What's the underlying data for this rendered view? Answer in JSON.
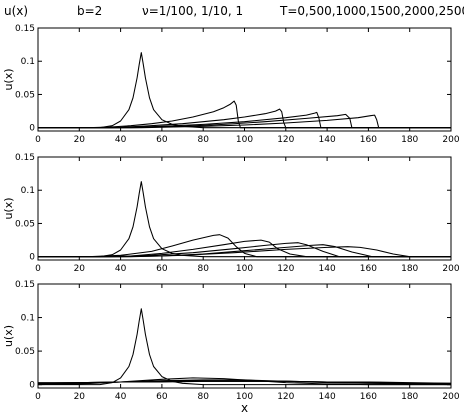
{
  "title": {
    "func": "u(x)",
    "b": "b=2",
    "nu": "ν=1/100, 1/10, 1",
    "times": "T=0,500,1000,1500,2000,2500"
  },
  "chart_data": [
    {
      "type": "line",
      "ylabel": "u(x)",
      "xlim": [
        0,
        200
      ],
      "ylim": [
        -0.005,
        0.15
      ],
      "xticks": [
        "0",
        "20",
        "40",
        "60",
        "80",
        "100",
        "120",
        "140",
        "160",
        "180",
        "200"
      ],
      "yticks": [
        "0",
        "0.05",
        "0.1",
        "0.15"
      ],
      "series": [
        {
          "x": [
            0,
            30,
            36,
            40,
            44,
            46,
            48,
            49,
            50,
            51,
            52,
            54,
            56,
            60,
            65,
            70,
            80,
            90,
            200
          ],
          "y": [
            0,
            0,
            0.003,
            0.01,
            0.027,
            0.045,
            0.075,
            0.095,
            0.113,
            0.095,
            0.075,
            0.045,
            0.027,
            0.012,
            0.005,
            0.002,
            0,
            0,
            0
          ]
        },
        {
          "x": [
            0,
            25,
            35,
            45,
            55,
            65,
            75,
            85,
            90,
            93,
            95,
            96,
            97,
            98,
            200
          ],
          "y": [
            0,
            0,
            0.001,
            0.003,
            0.006,
            0.01,
            0.016,
            0.024,
            0.03,
            0.035,
            0.04,
            0.034,
            0.01,
            0,
            0
          ]
        },
        {
          "x": [
            0,
            35,
            50,
            70,
            90,
            100,
            110,
            115,
            117,
            118,
            119,
            120,
            200
          ],
          "y": [
            0,
            0,
            0.002,
            0.006,
            0.012,
            0.016,
            0.021,
            0.025,
            0.028,
            0.024,
            0.008,
            0,
            0
          ]
        },
        {
          "x": [
            0,
            40,
            60,
            80,
            100,
            120,
            130,
            134,
            135,
            136,
            137,
            200
          ],
          "y": [
            0,
            0,
            0.002,
            0.005,
            0.009,
            0.015,
            0.019,
            0.022,
            0.023,
            0.015,
            0,
            0
          ]
        },
        {
          "x": [
            0,
            45,
            70,
            90,
            110,
            130,
            145,
            149,
            151,
            152,
            200
          ],
          "y": [
            0,
            0,
            0.002,
            0.005,
            0.009,
            0.014,
            0.018,
            0.02,
            0.014,
            0,
            0
          ]
        },
        {
          "x": [
            0,
            50,
            80,
            100,
            120,
            140,
            155,
            161,
            163,
            164,
            165,
            200
          ],
          "y": [
            0,
            0,
            0.002,
            0.004,
            0.007,
            0.011,
            0.015,
            0.018,
            0.019,
            0.012,
            0,
            0
          ]
        }
      ]
    },
    {
      "type": "line",
      "ylabel": "u(x)",
      "xlim": [
        0,
        200
      ],
      "ylim": [
        -0.005,
        0.15
      ],
      "xticks": [
        "0",
        "20",
        "40",
        "60",
        "80",
        "100",
        "120",
        "140",
        "160",
        "180",
        "200"
      ],
      "yticks": [
        "0",
        "0.05",
        "0.1",
        "0.15"
      ],
      "series": [
        {
          "x": [
            0,
            30,
            36,
            40,
            44,
            46,
            48,
            49,
            50,
            51,
            52,
            54,
            56,
            60,
            65,
            70,
            80,
            90,
            200
          ],
          "y": [
            0,
            0,
            0.003,
            0.01,
            0.027,
            0.045,
            0.075,
            0.095,
            0.113,
            0.095,
            0.075,
            0.045,
            0.027,
            0.012,
            0.005,
            0.002,
            0,
            0,
            0
          ]
        },
        {
          "x": [
            0,
            25,
            40,
            55,
            65,
            75,
            85,
            88,
            92,
            96,
            100,
            106,
            200
          ],
          "y": [
            0,
            0,
            0.002,
            0.008,
            0.016,
            0.025,
            0.032,
            0.033,
            0.028,
            0.015,
            0.005,
            0,
            0
          ]
        },
        {
          "x": [
            0,
            30,
            45,
            60,
            75,
            90,
            100,
            108,
            112,
            116,
            122,
            130,
            200
          ],
          "y": [
            0,
            0,
            0.001,
            0.005,
            0.011,
            0.018,
            0.023,
            0.025,
            0.022,
            0.012,
            0.004,
            0,
            0
          ]
        },
        {
          "x": [
            0,
            35,
            55,
            75,
            95,
            110,
            120,
            126,
            130,
            138,
            146,
            200
          ],
          "y": [
            0,
            0,
            0.002,
            0.006,
            0.012,
            0.017,
            0.02,
            0.021,
            0.018,
            0.008,
            0,
            0
          ]
        },
        {
          "x": [
            0,
            40,
            60,
            80,
            100,
            120,
            132,
            138,
            144,
            152,
            162,
            200
          ],
          "y": [
            0,
            0,
            0.001,
            0.004,
            0.009,
            0.014,
            0.017,
            0.018,
            0.015,
            0.007,
            0,
            0
          ]
        },
        {
          "x": [
            0,
            45,
            70,
            95,
            120,
            140,
            150,
            156,
            164,
            172,
            180,
            200
          ],
          "y": [
            0,
            0,
            0.002,
            0.006,
            0.011,
            0.014,
            0.015,
            0.014,
            0.01,
            0.004,
            0,
            0
          ]
        }
      ]
    },
    {
      "type": "line",
      "ylabel": "u(x)",
      "xlabel": "x",
      "xlim": [
        0,
        200
      ],
      "ylim": [
        -0.005,
        0.15
      ],
      "xticks": [
        "0",
        "20",
        "40",
        "60",
        "80",
        "100",
        "120",
        "140",
        "160",
        "180",
        "200"
      ],
      "yticks": [
        "0",
        "0.05",
        "0.1",
        "0.15"
      ],
      "series": [
        {
          "x": [
            0,
            30,
            36,
            40,
            44,
            46,
            48,
            49,
            50,
            51,
            52,
            54,
            56,
            60,
            65,
            70,
            80,
            90,
            200
          ],
          "y": [
            0,
            0,
            0.003,
            0.01,
            0.027,
            0.045,
            0.075,
            0.095,
            0.113,
            0.095,
            0.075,
            0.045,
            0.027,
            0.012,
            0.005,
            0.002,
            0,
            0,
            0
          ]
        },
        {
          "x": [
            0,
            20,
            40,
            60,
            75,
            90,
            105,
            120,
            140,
            160,
            180,
            200
          ],
          "y": [
            0,
            0.001,
            0.004,
            0.008,
            0.01,
            0.009,
            0.006,
            0.003,
            0.001,
            0,
            0,
            0
          ]
        },
        {
          "x": [
            0,
            20,
            40,
            60,
            80,
            100,
            120,
            140,
            160,
            180,
            200
          ],
          "y": [
            0.001,
            0.002,
            0.004,
            0.006,
            0.007,
            0.007,
            0.005,
            0.003,
            0.002,
            0.001,
            0
          ]
        },
        {
          "x": [
            0,
            20,
            40,
            60,
            80,
            100,
            120,
            140,
            160,
            180,
            200
          ],
          "y": [
            0.002,
            0.003,
            0.004,
            0.005,
            0.006,
            0.006,
            0.005,
            0.004,
            0.003,
            0.002,
            0.001
          ]
        },
        {
          "x": [
            0,
            20,
            40,
            60,
            80,
            100,
            120,
            140,
            160,
            180,
            200
          ],
          "y": [
            0.002,
            0.003,
            0.004,
            0.005,
            0.005,
            0.005,
            0.005,
            0.004,
            0.003,
            0.002,
            0.002
          ]
        },
        {
          "x": [
            0,
            20,
            40,
            60,
            80,
            100,
            120,
            140,
            160,
            180,
            200
          ],
          "y": [
            0.003,
            0.003,
            0.004,
            0.004,
            0.005,
            0.005,
            0.005,
            0.004,
            0.004,
            0.003,
            0.002
          ]
        }
      ]
    }
  ]
}
